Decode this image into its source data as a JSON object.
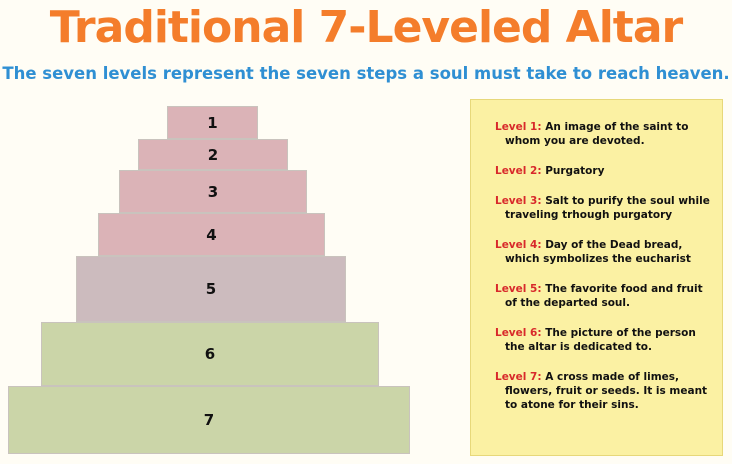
{
  "title": "Traditional 7-Leveled Altar",
  "subtitle": "The seven levels represent the seven steps a soul must take to reach heaven.",
  "tiers": [
    "1",
    "2",
    "3",
    "4",
    "5",
    "6",
    "7"
  ],
  "legend": [
    {
      "level": "Level 1:",
      "text": "An image of the saint to whom you are devoted."
    },
    {
      "level": "Level 2:",
      "text": "Purgatory"
    },
    {
      "level": "Level 3:",
      "text": "Salt to purify the soul while traveling trhough purgatory"
    },
    {
      "level": "Level 4:",
      "text": "Day of the Dead bread, which symbolizes the eucharist"
    },
    {
      "level": "Level 5:",
      "text": "The favorite food and fruit of the departed soul."
    },
    {
      "level": "Level 6:",
      "text": "The picture of the person the altar is dedicated to."
    },
    {
      "level": "Level 7:",
      "text": "A cross made of limes, flowers, fruit or seeds. It is meant to atone for their sins."
    }
  ],
  "colors": {
    "title": "#f47d2b",
    "subtitle": "#2f8fd3",
    "level_label": "#d8292b",
    "tier_pink": "#dbb3b7",
    "tier_mauve": "#ccbbbe",
    "tier_green": "#cbd5a8",
    "legend_bg": "#fbf1a3"
  }
}
